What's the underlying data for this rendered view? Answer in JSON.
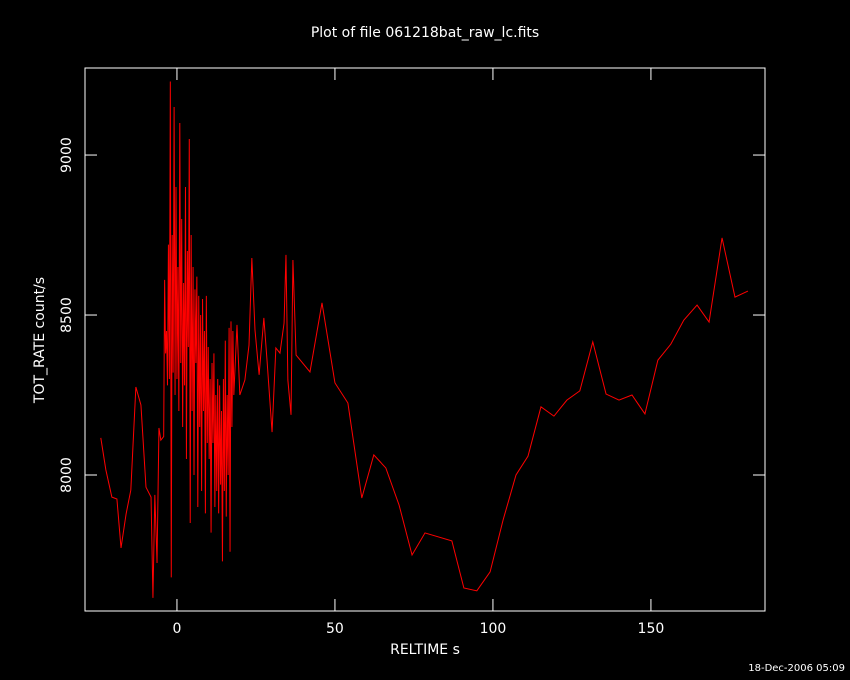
{
  "chart_data": {
    "type": "line",
    "title": "Plot of file 061218bat_raw_lc.fits",
    "x_label": "RELTIME  s",
    "y_label": "TOT_RATE  count/s",
    "footer": "18-Dec-2006 05:09",
    "xlim": [
      -29.1,
      186.1
    ],
    "xticks": [
      0,
      50,
      100,
      150
    ],
    "ylim": [
      7575,
      9272
    ],
    "yticks": [
      8000,
      8500,
      9000
    ],
    "grid": false,
    "series": [
      {
        "name": "TOT_RATE",
        "color": "#ff0000",
        "x": [
          -24.1,
          -22.5,
          -20.6,
          -19,
          -17.7,
          -16.1,
          -14.6,
          -13,
          -11.4,
          -9.8,
          -8.2,
          -7.6,
          -7,
          -6.3,
          -5.7,
          -5.1,
          -4.2,
          -3.9,
          -3.6,
          -3.3,
          -3.0,
          -2.7,
          -2.4,
          -2.1,
          -1.8,
          -1.5,
          -1.2,
          -0.9,
          -0.6,
          -0.3,
          0.0,
          0.3,
          0.6,
          0.9,
          1.2,
          1.5,
          1.8,
          2.1,
          2.4,
          2.7,
          3.0,
          3.3,
          3.6,
          3.9,
          4.2,
          4.5,
          4.8,
          5.1,
          5.4,
          5.7,
          6.0,
          6.3,
          6.6,
          6.9,
          7.2,
          7.5,
          7.8,
          8.1,
          8.4,
          8.7,
          9.0,
          9.3,
          9.6,
          9.9,
          10.2,
          10.5,
          10.8,
          11.1,
          11.4,
          11.7,
          12.0,
          12.3,
          12.6,
          12.9,
          13.2,
          13.5,
          13.8,
          14.1,
          14.4,
          14.7,
          15.0,
          15.3,
          15.6,
          15.9,
          16.2,
          16.5,
          16.8,
          17.1,
          17.4,
          17.7,
          18.0,
          19,
          19.9,
          21.5,
          22.8,
          23.7,
          24.7,
          26,
          27.5,
          28.5,
          30.1,
          31.3,
          32.6,
          33.9,
          34.5,
          35.1,
          36.1,
          36.7,
          37.7,
          42.1,
          45.9,
          50,
          54.1,
          58.5,
          62.3,
          66.1,
          70.3,
          74.4,
          78.5,
          87,
          90.8,
          94.9,
          99.1,
          103.2,
          107.3,
          111.1,
          115.2,
          119.3,
          123.4,
          127.5,
          131.6,
          135.8,
          139.9,
          144,
          148.1,
          152.2,
          156.3,
          160.4,
          164.6,
          168.4,
          172.5,
          176.6,
          180.7
        ],
        "values": [
          8116,
          8016,
          7931,
          7925,
          7772,
          7878,
          7953,
          8275,
          8219,
          7962,
          7931,
          7616,
          7938,
          7725,
          8147,
          8109,
          8120,
          8610,
          8380,
          8450,
          8280,
          8720,
          8300,
          9230,
          7680,
          8750,
          8320,
          9150,
          8250,
          8900,
          8300,
          8650,
          8200,
          9100,
          8350,
          8800,
          8150,
          8600,
          8280,
          8900,
          8050,
          8700,
          8400,
          9050,
          7850,
          8750,
          8200,
          8650,
          8000,
          8580,
          8350,
          8620,
          7900,
          8560,
          8150,
          8500,
          7950,
          8550,
          8200,
          8450,
          7880,
          8560,
          8100,
          8400,
          8050,
          8300,
          7820,
          8350,
          8100,
          8380,
          7900,
          8250,
          7950,
          8300,
          7880,
          8280,
          7970,
          8200,
          7730,
          8300,
          7950,
          8420,
          7870,
          8250,
          8000,
          8460,
          7760,
          8480,
          8150,
          8450,
          8250,
          8469,
          8250,
          8297,
          8406,
          8678,
          8453,
          8313,
          8491,
          8359,
          8134,
          8397,
          8381,
          8475,
          8688,
          8297,
          8188,
          8672,
          8375,
          8322,
          8538,
          8288,
          8225,
          7928,
          8063,
          8022,
          7906,
          7750,
          7819,
          7794,
          7647,
          7638,
          7697,
          7859,
          8000,
          8059,
          8213,
          8184,
          8234,
          8263,
          8416,
          8253,
          8234,
          8250,
          8191,
          8359,
          8409,
          8484,
          8531,
          8478,
          8741,
          8556,
          8575
        ]
      }
    ]
  }
}
